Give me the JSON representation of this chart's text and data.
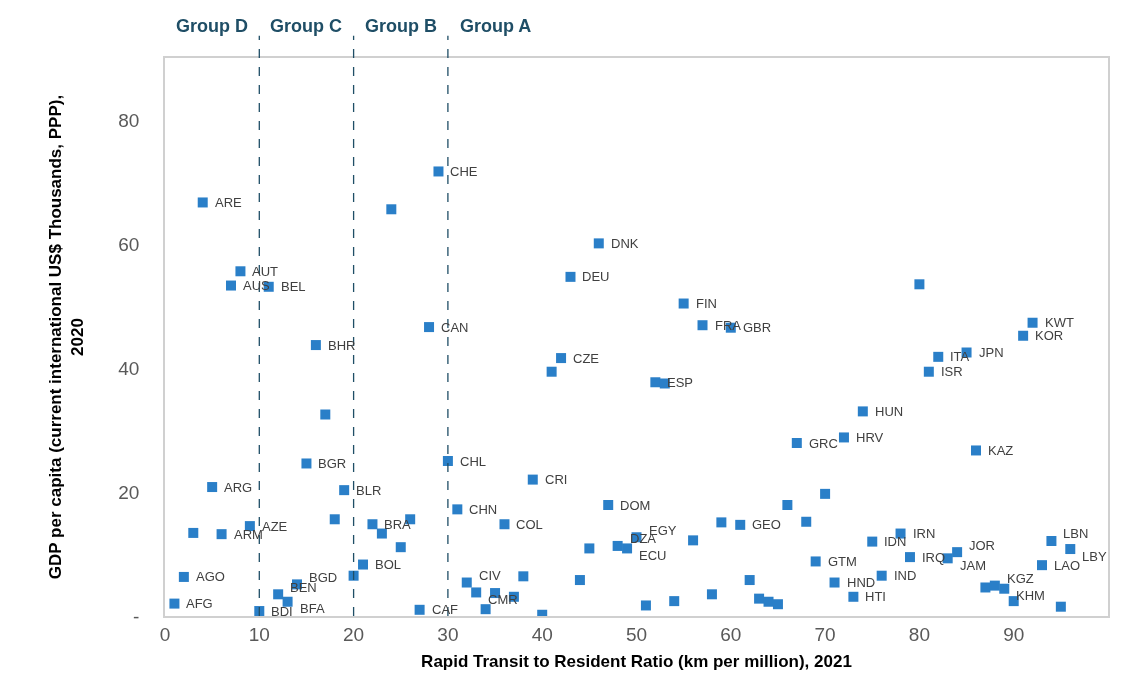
{
  "chart_data": {
    "type": "scatter",
    "xlabel": "Rapid Transit to Resident Ratio (km per million), 2021",
    "ylabel": "GDP per capita (current international US$ Thousands, PPP),\n2020",
    "x": [
      1,
      2,
      3,
      4,
      5,
      6,
      7,
      8,
      9,
      10,
      11,
      12,
      13,
      14,
      15,
      16,
      17,
      18,
      19,
      20,
      21,
      22,
      23,
      24,
      25,
      26,
      27,
      28,
      29,
      30,
      31,
      32,
      33,
      34,
      35,
      36,
      37,
      38,
      39,
      40,
      41,
      42,
      43,
      44,
      45,
      46,
      47,
      48,
      49,
      50,
      51,
      52,
      53,
      54,
      55,
      56,
      57,
      58,
      59,
      60,
      61,
      62,
      63,
      64,
      65,
      66,
      67,
      68,
      69,
      70,
      71,
      72,
      73,
      74,
      75,
      76,
      78,
      79,
      80,
      81,
      82,
      83,
      84,
      85,
      86,
      87,
      88,
      89,
      90,
      91,
      92,
      93,
      94,
      95,
      96
    ],
    "series": [
      {
        "color": "#2a7fc8",
        "marker": "square",
        "values": [
          2.0,
          6.3,
          13.4,
          66.7,
          20.8,
          13.2,
          53.3,
          55.6,
          14.5,
          0.8,
          53.1,
          3.5,
          2.3,
          5.1,
          24.6,
          43.7,
          32.5,
          15.6,
          20.3,
          6.5,
          8.3,
          14.8,
          13.3,
          65.6,
          11.1,
          15.6,
          1.0,
          46.6,
          71.7,
          25.0,
          17.2,
          5.4,
          3.8,
          1.1,
          3.7,
          14.8,
          3.1,
          6.4,
          22.0,
          0.2,
          39.4,
          41.6,
          54.7,
          5.8,
          10.9,
          60.1,
          17.9,
          11.3,
          10.9,
          12.7,
          1.7,
          37.7,
          37.5,
          2.4,
          50.4,
          12.2,
          46.9,
          3.5,
          15.1,
          46.5,
          14.7,
          5.8,
          2.8,
          2.3,
          1.9,
          17.9,
          27.9,
          15.2,
          8.8,
          19.7,
          5.4,
          28.8,
          3.1,
          33.0,
          12.0,
          6.5,
          13.3,
          9.5,
          53.5,
          39.4,
          41.8,
          9.3,
          10.3,
          42.5,
          26.7,
          4.6,
          4.9,
          4.4,
          2.4,
          45.2,
          47.3,
          8.2,
          12.1,
          1.5,
          10.8
        ]
      }
    ],
    "xlim": [
      0,
      100
    ],
    "xticks": [
      0,
      10,
      20,
      30,
      40,
      50,
      60,
      70,
      80,
      90
    ],
    "ylim": [
      0,
      90
    ],
    "yticks": [
      {
        "value": 0,
        "label": "-"
      },
      20,
      40,
      60,
      80
    ],
    "ref_lines": [
      {
        "axis": "x",
        "value": 10,
        "color": "#1f4e66",
        "line_style": "dashed"
      },
      {
        "axis": "x",
        "value": 20,
        "color": "#1f4e66",
        "line_style": "dashed"
      },
      {
        "axis": "x",
        "value": 30,
        "color": "#1f4e66",
        "line_style": "dashed"
      }
    ],
    "annotations": [
      "Group D",
      "Group C",
      "Group B",
      "Group A",
      {
        "text": "AFG",
        "x": 1,
        "y": 2.0
      },
      {
        "text": "AGO",
        "x": 2,
        "y": 6.3
      },
      {
        "text": "ARE",
        "x": 4,
        "y": 66.7
      },
      {
        "text": "ARG",
        "x": 5,
        "y": 20.8
      },
      {
        "text": "ARM",
        "x": 6,
        "y": 13.2
      },
      {
        "text": "AUS",
        "x": 7,
        "y": 53.3
      },
      {
        "text": "AUT",
        "x": 8,
        "y": 55.6
      },
      {
        "text": "AZE",
        "x": 9,
        "y": 14.5
      },
      {
        "text": "BDI",
        "x": 10,
        "y": 0.8
      },
      {
        "text": "BEL",
        "x": 11,
        "y": 53.1
      },
      {
        "text": "BEN",
        "x": 12,
        "y": 3.5
      },
      {
        "text": "BFA",
        "x": 13,
        "y": 2.3
      },
      {
        "text": "BGD",
        "x": 14,
        "y": 5.1
      },
      {
        "text": "BGR",
        "x": 15,
        "y": 24.6
      },
      {
        "text": "BHR",
        "x": 16,
        "y": 43.7
      },
      {
        "text": "BLR",
        "x": 19,
        "y": 20.3
      },
      {
        "text": "BOL",
        "x": 21,
        "y": 8.3
      },
      {
        "text": "BRA",
        "x": 22,
        "y": 14.8
      },
      {
        "text": "CAF",
        "x": 27,
        "y": 1.0
      },
      {
        "text": "CAN",
        "x": 28,
        "y": 46.6
      },
      {
        "text": "CHE",
        "x": 29,
        "y": 71.7
      },
      {
        "text": "CHL",
        "x": 30,
        "y": 25.0
      },
      {
        "text": "CHN",
        "x": 31,
        "y": 17.2
      },
      {
        "text": "CIV",
        "x": 32,
        "y": 5.4
      },
      {
        "text": "CMR",
        "x": 33,
        "y": 3.8
      },
      {
        "text": "COL",
        "x": 36,
        "y": 14.8
      },
      {
        "text": "CRI",
        "x": 39,
        "y": 22.0
      },
      {
        "text": "CZE",
        "x": 42,
        "y": 41.6
      },
      {
        "text": "DEU",
        "x": 43,
        "y": 54.7
      },
      {
        "text": "DNK",
        "x": 46,
        "y": 60.1
      },
      {
        "text": "DOM",
        "x": 47,
        "y": 17.9
      },
      {
        "text": "DZA",
        "x": 48,
        "y": 11.3
      },
      {
        "text": "ECU",
        "x": 49,
        "y": 10.9
      },
      {
        "text": "EGY",
        "x": 50,
        "y": 12.7
      },
      {
        "text": "ESP",
        "x": 52,
        "y": 37.7
      },
      {
        "text": "FIN",
        "x": 55,
        "y": 50.4
      },
      {
        "text": "FRA",
        "x": 57,
        "y": 46.9
      },
      {
        "text": "GBR",
        "x": 60,
        "y": 46.5
      },
      {
        "text": "GEO",
        "x": 61,
        "y": 14.7
      },
      {
        "text": "GRC",
        "x": 67,
        "y": 27.9
      },
      {
        "text": "GTM",
        "x": 69,
        "y": 8.8
      },
      {
        "text": "HND",
        "x": 71,
        "y": 5.4
      },
      {
        "text": "HRV",
        "x": 72,
        "y": 28.8
      },
      {
        "text": "HTI",
        "x": 73,
        "y": 3.1
      },
      {
        "text": "HUN",
        "x": 74,
        "y": 33.0
      },
      {
        "text": "IDN",
        "x": 75,
        "y": 12.0
      },
      {
        "text": "IND",
        "x": 76,
        "y": 6.5
      },
      {
        "text": "IRN",
        "x": 78,
        "y": 13.3
      },
      {
        "text": "IRQ",
        "x": 79,
        "y": 9.5
      },
      {
        "text": "ISR",
        "x": 81,
        "y": 39.4
      },
      {
        "text": "ITA",
        "x": 82,
        "y": 41.8
      },
      {
        "text": "JAM",
        "x": 83,
        "y": 9.3
      },
      {
        "text": "JOR",
        "x": 84,
        "y": 10.3
      },
      {
        "text": "JPN",
        "x": 85,
        "y": 42.5
      },
      {
        "text": "KAZ",
        "x": 86,
        "y": 26.7
      },
      {
        "text": "KGZ",
        "x": 88,
        "y": 4.9
      },
      {
        "text": "KHM",
        "x": 89,
        "y": 4.4
      },
      {
        "text": "KOR",
        "x": 91,
        "y": 45.2
      },
      {
        "text": "KWT",
        "x": 92,
        "y": 47.3
      },
      {
        "text": "LAO",
        "x": 93,
        "y": 8.2
      },
      {
        "text": "LBN",
        "x": 94,
        "y": 12.1
      },
      {
        "text": "LBY",
        "x": 96,
        "y": 10.8
      }
    ]
  }
}
